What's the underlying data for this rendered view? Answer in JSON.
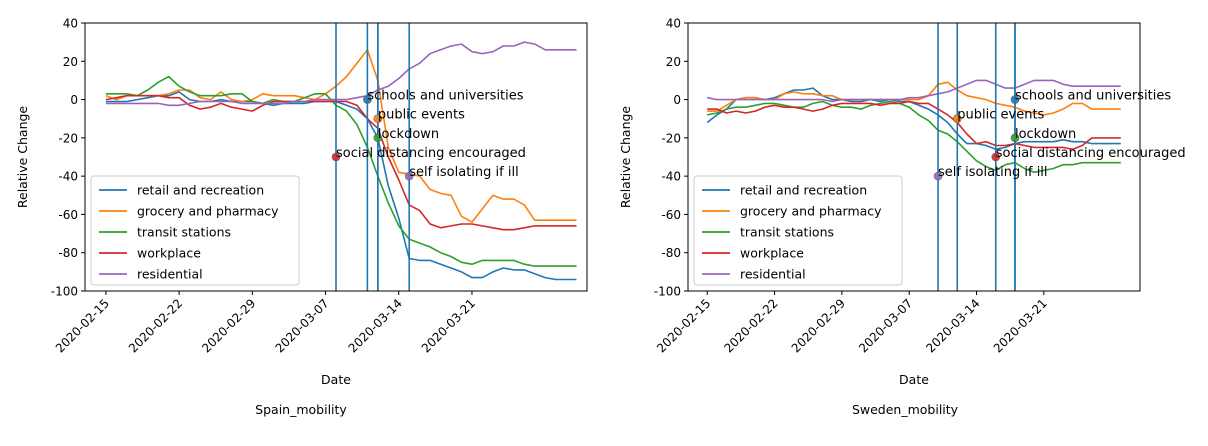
{
  "chart_data": [
    {
      "type": "line",
      "caption": "Spain_mobility",
      "xlabel": "Date",
      "ylabel": "Relative Change",
      "ylim": [
        -100,
        40
      ],
      "yticks": [
        -100,
        -80,
        -60,
        -40,
        -20,
        0,
        20,
        40
      ],
      "xlim": [
        "2020-02-13",
        "2020-04-01"
      ],
      "xticks": [
        "2020-02-15",
        "2020-02-22",
        "2020-02-29",
        "2020-03-07",
        "2020-03-14",
        "2020-03-21"
      ],
      "legend_position": "lower-left",
      "x": [
        "2020-02-15",
        "2020-02-16",
        "2020-02-17",
        "2020-02-18",
        "2020-02-19",
        "2020-02-20",
        "2020-02-21",
        "2020-02-22",
        "2020-02-23",
        "2020-02-24",
        "2020-02-25",
        "2020-02-26",
        "2020-02-27",
        "2020-02-28",
        "2020-02-29",
        "2020-03-01",
        "2020-03-02",
        "2020-03-03",
        "2020-03-04",
        "2020-03-05",
        "2020-03-06",
        "2020-03-07",
        "2020-03-08",
        "2020-03-09",
        "2020-03-10",
        "2020-03-11",
        "2020-03-12",
        "2020-03-13",
        "2020-03-14",
        "2020-03-15",
        "2020-03-16",
        "2020-03-17",
        "2020-03-18",
        "2020-03-19",
        "2020-03-20",
        "2020-03-21",
        "2020-03-22",
        "2020-03-23",
        "2020-03-24",
        "2020-03-25",
        "2020-03-26",
        "2020-03-27",
        "2020-03-28",
        "2020-03-29",
        "2020-03-30",
        "2020-03-31"
      ],
      "series": [
        {
          "name": "retail and recreation",
          "color": "#1f77b4",
          "values": [
            -1,
            -1,
            -1,
            0,
            1,
            2,
            2,
            4,
            0,
            -1,
            -1,
            0,
            -1,
            -1,
            -1,
            -2,
            -3,
            -2,
            -2,
            -2,
            -1,
            -1,
            -1,
            -3,
            -5,
            -10,
            -20,
            -45,
            -62,
            -83,
            -84,
            -84,
            -86,
            -88,
            -90,
            -93,
            -93,
            -90,
            -88,
            -89,
            -89,
            -91,
            -93,
            -94,
            -94,
            -94
          ]
        },
        {
          "name": "grocery and pharmacy",
          "color": "#ff7f0e",
          "values": [
            2,
            0,
            2,
            2,
            2,
            2,
            3,
            5,
            5,
            1,
            0,
            4,
            0,
            -1,
            0,
            3,
            2,
            2,
            2,
            1,
            0,
            3,
            7,
            12,
            19,
            26,
            10,
            -25,
            -38,
            -39,
            -40,
            -47,
            -49,
            -50,
            -61,
            -64,
            -57,
            -50,
            -52,
            -52,
            -55,
            -63,
            -63,
            -63,
            -63,
            -63
          ]
        },
        {
          "name": "transit stations",
          "color": "#2ca02c",
          "values": [
            3,
            3,
            3,
            2,
            5,
            9,
            12,
            7,
            4,
            2,
            2,
            2,
            3,
            3,
            -1,
            -2,
            0,
            -1,
            -1,
            1,
            3,
            3,
            -3,
            -6,
            -13,
            -25,
            -40,
            -54,
            -66,
            -73,
            -75,
            -77,
            -80,
            -82,
            -85,
            -86,
            -84,
            -84,
            -84,
            -84,
            -86,
            -87,
            -87,
            -87,
            -87,
            -87
          ]
        },
        {
          "name": "workplace",
          "color": "#d62728",
          "values": [
            0,
            1,
            2,
            2,
            2,
            2,
            1,
            1,
            -3,
            -5,
            -4,
            -2,
            -4,
            -5,
            -6,
            -3,
            -1,
            -1,
            -1,
            -1,
            -1,
            -1,
            -1,
            -1,
            -3,
            -10,
            -15,
            -30,
            -42,
            -55,
            -58,
            -65,
            -67,
            -66,
            -65,
            -65,
            -66,
            -67,
            -68,
            -68,
            -67,
            -66,
            -66,
            -66,
            -66,
            -66
          ]
        },
        {
          "name": "residential",
          "color": "#9467bd",
          "values": [
            -2,
            -2,
            -2,
            -2,
            -2,
            -2,
            -3,
            -3,
            -2,
            -1,
            -1,
            -1,
            -1,
            -2,
            -2,
            -2,
            -2,
            -2,
            -1,
            -1,
            0,
            0,
            0,
            0,
            1,
            2,
            5,
            7,
            11,
            16,
            19,
            24,
            26,
            28,
            29,
            25,
            24,
            25,
            28,
            28,
            30,
            29,
            26,
            26,
            26,
            26
          ]
        }
      ],
      "events": [
        {
          "label": "schools and universities",
          "date": "2020-03-11",
          "y": 0,
          "dot_color": "#1f77b4"
        },
        {
          "label": "public events",
          "date": "2020-03-12",
          "y": -10,
          "dot_color": "#ff7f0e"
        },
        {
          "label": "lockdown",
          "date": "2020-03-12",
          "y": -20,
          "dot_color": "#2ca02c"
        },
        {
          "label": "social distancing encouraged",
          "date": "2020-03-08",
          "y": -30,
          "dot_color": "#d62728"
        },
        {
          "label": "self isolating if ill",
          "date": "2020-03-15",
          "y": -40,
          "dot_color": "#9467bd"
        }
      ]
    },
    {
      "type": "line",
      "caption": "Sweden_mobility",
      "xlabel": "Date",
      "ylabel": "Relative Change",
      "ylim": [
        -100,
        40
      ],
      "yticks": [
        -100,
        -80,
        -60,
        -40,
        -20,
        0,
        20,
        40
      ],
      "xlim": [
        "2020-02-13",
        "2020-03-31"
      ],
      "xticks": [
        "2020-02-15",
        "2020-02-22",
        "2020-02-29",
        "2020-03-07",
        "2020-03-14",
        "2020-03-21"
      ],
      "legend_position": "lower-left",
      "x": [
        "2020-02-15",
        "2020-02-16",
        "2020-02-17",
        "2020-02-18",
        "2020-02-19",
        "2020-02-20",
        "2020-02-21",
        "2020-02-22",
        "2020-02-23",
        "2020-02-24",
        "2020-02-25",
        "2020-02-26",
        "2020-02-27",
        "2020-02-28",
        "2020-02-29",
        "2020-03-01",
        "2020-03-02",
        "2020-03-03",
        "2020-03-04",
        "2020-03-05",
        "2020-03-06",
        "2020-03-07",
        "2020-03-08",
        "2020-03-09",
        "2020-03-10",
        "2020-03-11",
        "2020-03-12",
        "2020-03-13",
        "2020-03-14",
        "2020-03-15",
        "2020-03-16",
        "2020-03-17",
        "2020-03-18",
        "2020-03-19",
        "2020-03-20",
        "2020-03-21",
        "2020-03-22",
        "2020-03-23",
        "2020-03-24",
        "2020-03-25",
        "2020-03-26",
        "2020-03-27",
        "2020-03-28",
        "2020-03-29"
      ],
      "series": [
        {
          "name": "retail and recreation",
          "color": "#1f77b4",
          "values": [
            -12,
            -8,
            -5,
            0,
            1,
            1,
            0,
            1,
            3,
            5,
            5,
            6,
            2,
            0,
            0,
            -1,
            -1,
            0,
            -1,
            0,
            -1,
            -1,
            -3,
            -5,
            -8,
            -12,
            -18,
            -23,
            -23,
            -24,
            -26,
            -25,
            -23,
            -22,
            -22,
            -22,
            -22,
            -21,
            -22,
            -22,
            -23,
            -23,
            -23,
            -23
          ]
        },
        {
          "name": "grocery and pharmacy",
          "color": "#ff7f0e",
          "values": [
            -6,
            -6,
            -3,
            0,
            1,
            1,
            0,
            0,
            3,
            4,
            3,
            3,
            2,
            2,
            0,
            0,
            0,
            0,
            0,
            0,
            0,
            0,
            0,
            2,
            8,
            9,
            5,
            2,
            1,
            0,
            -2,
            -3,
            -4,
            -6,
            -7,
            -8,
            -7,
            -5,
            -2,
            -2,
            -5,
            -5,
            -5,
            -5
          ]
        },
        {
          "name": "transit stations",
          "color": "#2ca02c",
          "values": [
            -8,
            -7,
            -5,
            -4,
            -4,
            -3,
            -2,
            -2,
            -3,
            -4,
            -4,
            -2,
            -1,
            -3,
            -4,
            -4,
            -5,
            -3,
            -2,
            -1,
            -2,
            -4,
            -8,
            -11,
            -16,
            -18,
            -22,
            -27,
            -32,
            -35,
            -37,
            -34,
            -33,
            -36,
            -38,
            -37,
            -36,
            -34,
            -34,
            -33,
            -33,
            -33,
            -33,
            -33
          ]
        },
        {
          "name": "workplace",
          "color": "#d62728",
          "values": [
            -5,
            -5,
            -7,
            -6,
            -7,
            -6,
            -4,
            -3,
            -4,
            -4,
            -5,
            -6,
            -5,
            -3,
            -2,
            -2,
            -2,
            -2,
            -3,
            -2,
            -2,
            -1,
            -2,
            -2,
            -5,
            -8,
            -12,
            -18,
            -23,
            -22,
            -24,
            -24,
            -23,
            -24,
            -25,
            -25,
            -25,
            -25,
            -26,
            -24,
            -20,
            -20,
            -20,
            -20
          ]
        },
        {
          "name": "residential",
          "color": "#9467bd",
          "values": [
            1,
            0,
            0,
            0,
            0,
            0,
            0,
            0,
            0,
            0,
            0,
            0,
            0,
            -1,
            0,
            0,
            0,
            0,
            0,
            0,
            0,
            1,
            1,
            2,
            3,
            4,
            6,
            8,
            10,
            10,
            8,
            6,
            6,
            8,
            10,
            10,
            10,
            8,
            7,
            7,
            7,
            7,
            7,
            7
          ]
        }
      ],
      "events": [
        {
          "label": "schools and universities",
          "date": "2020-03-18",
          "y": 0,
          "dot_color": "#1f77b4"
        },
        {
          "label": "public events",
          "date": "2020-03-12",
          "y": -10,
          "dot_color": "#ff7f0e"
        },
        {
          "label": "lockdown",
          "date": "2020-03-18",
          "y": -20,
          "dot_color": "#2ca02c"
        },
        {
          "label": "social distancing encouraged",
          "date": "2020-03-16",
          "y": -30,
          "dot_color": "#d62728"
        },
        {
          "label": "self isolating if ill",
          "date": "2020-03-10",
          "y": -40,
          "dot_color": "#9467bd"
        }
      ]
    }
  ]
}
